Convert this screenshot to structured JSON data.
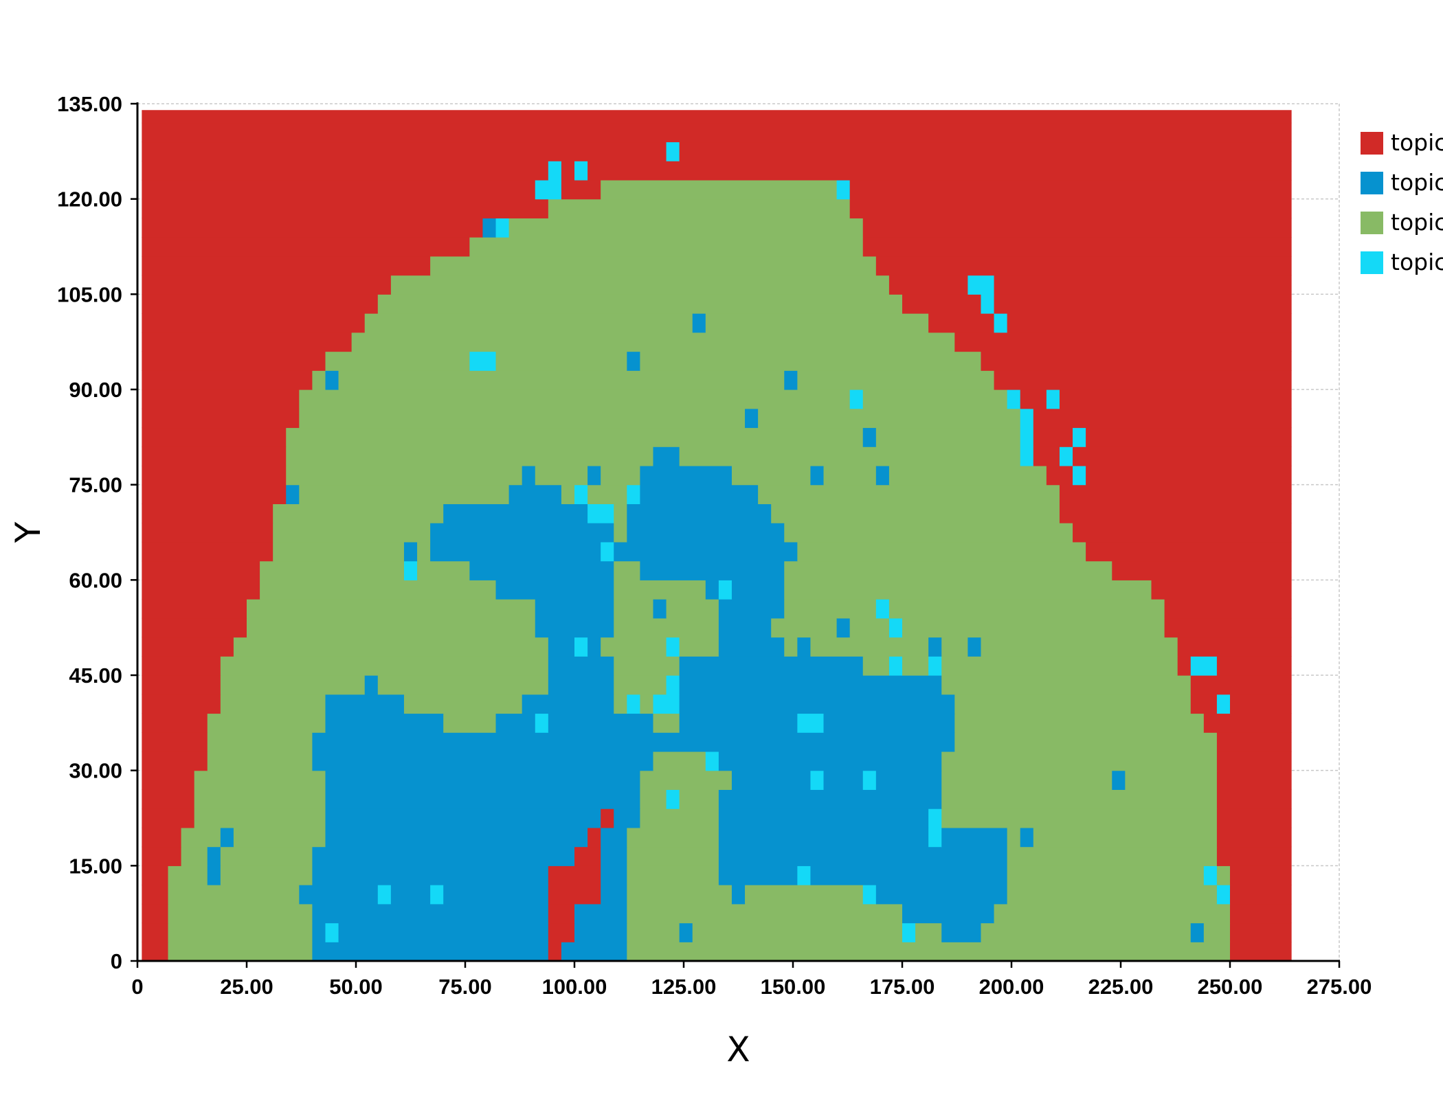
{
  "chart_data": {
    "type": "heatmap",
    "title": "",
    "xlabel": "X",
    "ylabel": "Y",
    "xlim": [
      0,
      275
    ],
    "ylim": [
      0,
      135
    ],
    "x_ticks": [
      "0",
      "25.00",
      "50.00",
      "75.00",
      "100.00",
      "125.00",
      "150.00",
      "175.00",
      "200.00",
      "225.00",
      "250.00",
      "275.00"
    ],
    "y_ticks": [
      "0",
      "15.00",
      "30.00",
      "45.00",
      "60.00",
      "75.00",
      "90.00",
      "105.00",
      "120.00",
      "135.00"
    ],
    "grid": true,
    "legend_position": "right",
    "cell_size": 3,
    "extent": {
      "x": [
        1,
        264
      ],
      "y": [
        0,
        134
      ]
    },
    "categories": [
      {
        "name": "topic",
        "color": "#d12a27"
      },
      {
        "name": "topic",
        "color": "#0692cf"
      },
      {
        "name": "topic",
        "color": "#88ba65"
      },
      {
        "name": "topic",
        "color": "#14d9f7"
      }
    ],
    "background_category": 0,
    "approx_regions": [
      {
        "category": 2,
        "description_points": [
          [
            7,
            0
          ],
          [
            7,
            12
          ],
          [
            10,
            18
          ],
          [
            15,
            30
          ],
          [
            19,
            44
          ],
          [
            25,
            55
          ],
          [
            31,
            66
          ],
          [
            34,
            77
          ],
          [
            37,
            90
          ],
          [
            49,
            98
          ],
          [
            58,
            106
          ],
          [
            73,
            112
          ],
          [
            90,
            117
          ],
          [
            110,
            123
          ],
          [
            130,
            124
          ],
          [
            160,
            122
          ],
          [
            167,
            112
          ],
          [
            175,
            104
          ],
          [
            188,
            97
          ],
          [
            200,
            89
          ],
          [
            208,
            76
          ],
          [
            217,
            65
          ],
          [
            232,
            58
          ],
          [
            240,
            45
          ],
          [
            248,
            30
          ],
          [
            249,
            0
          ]
        ]
      },
      {
        "category": 1,
        "description_points": [
          [
            41,
            0
          ],
          [
            41,
            16
          ],
          [
            44,
            22
          ],
          [
            40,
            33
          ],
          [
            45,
            43
          ],
          [
            55,
            43
          ],
          [
            65,
            38
          ],
          [
            80,
            36
          ],
          [
            88,
            40
          ],
          [
            95,
            45
          ],
          [
            91,
            55
          ],
          [
            76,
            62
          ],
          [
            67,
            64
          ],
          [
            70,
            72
          ],
          [
            82,
            72
          ],
          [
            90,
            78
          ],
          [
            103,
            70
          ],
          [
            110,
            67
          ],
          [
            114,
            61
          ],
          [
            120,
            60
          ],
          [
            133,
            58
          ],
          [
            134,
            50
          ],
          [
            127,
            48
          ],
          [
            120,
            44
          ],
          [
            117,
            38
          ],
          [
            121,
            34
          ],
          [
            130,
            32
          ],
          [
            135,
            30
          ],
          [
            133,
            14
          ],
          [
            138,
            10
          ],
          [
            150,
            13
          ],
          [
            165,
            13
          ],
          [
            175,
            8
          ],
          [
            184,
            4
          ],
          [
            193,
            4
          ],
          [
            198,
            10
          ],
          [
            198,
            20
          ],
          [
            187,
            20
          ],
          [
            183,
            25
          ],
          [
            187,
            40
          ],
          [
            182,
            45
          ],
          [
            170,
            45
          ],
          [
            160,
            48
          ],
          [
            150,
            48
          ],
          [
            146,
            52
          ],
          [
            147,
            58
          ],
          [
            150,
            65
          ],
          [
            143,
            72
          ],
          [
            135,
            78
          ],
          [
            120,
            80
          ],
          [
            113,
            74
          ],
          [
            110,
            60
          ],
          [
            107,
            50
          ],
          [
            110,
            40
          ],
          [
            120,
            40
          ],
          [
            124,
            38
          ],
          [
            118,
            33
          ],
          [
            115,
            25
          ],
          [
            113,
            20
          ],
          [
            112,
            0
          ]
        ]
      },
      {
        "category": 0,
        "description_points": [
          [
            93,
            0
          ],
          [
            93,
            15
          ],
          [
            98,
            14
          ],
          [
            103,
            20
          ],
          [
            108,
            23
          ],
          [
            110,
            27
          ],
          [
            107,
            18
          ],
          [
            105,
            10
          ],
          [
            100,
            8
          ],
          [
            97,
            0
          ]
        ]
      }
    ],
    "highlight_cells": [
      [
        43,
        3
      ],
      [
        56,
        11
      ],
      [
        69,
        11
      ],
      [
        82,
        114
      ],
      [
        93,
        122
      ],
      [
        94,
        120
      ],
      [
        95,
        123
      ],
      [
        102,
        123
      ],
      [
        76,
        95
      ],
      [
        79,
        95
      ],
      [
        122,
        126
      ],
      [
        162,
        121
      ],
      [
        190,
        106
      ],
      [
        193,
        106
      ],
      [
        193,
        103
      ],
      [
        196,
        100
      ],
      [
        201,
        88
      ],
      [
        203,
        86
      ],
      [
        208,
        89
      ],
      [
        214,
        82
      ],
      [
        211,
        79
      ],
      [
        214,
        75
      ],
      [
        202,
        82
      ],
      [
        203,
        80
      ],
      [
        63,
        60
      ],
      [
        102,
        74
      ],
      [
        103,
        69
      ],
      [
        106,
        69
      ],
      [
        112,
        74
      ],
      [
        108,
        63
      ],
      [
        135,
        57
      ],
      [
        165,
        88
      ],
      [
        171,
        54
      ],
      [
        173,
        51
      ],
      [
        173,
        47
      ],
      [
        182,
        45
      ],
      [
        101,
        48
      ],
      [
        122,
        48
      ],
      [
        114,
        40
      ],
      [
        118,
        41
      ],
      [
        121,
        43
      ],
      [
        122,
        40
      ],
      [
        91,
        38
      ],
      [
        130,
        32
      ],
      [
        152,
        37
      ],
      [
        155,
        37
      ],
      [
        154,
        29
      ],
      [
        166,
        29
      ],
      [
        122,
        24
      ],
      [
        152,
        13
      ],
      [
        168,
        11
      ],
      [
        176,
        5
      ],
      [
        181,
        21
      ],
      [
        183,
        20
      ],
      [
        246,
        46
      ],
      [
        247,
        40
      ],
      [
        246,
        14
      ],
      [
        247,
        11
      ],
      [
        243,
        46
      ]
    ],
    "point_cells_dark": [
      [
        43,
        90
      ],
      [
        35,
        72
      ],
      [
        21,
        20
      ],
      [
        16,
        17
      ],
      [
        16,
        14
      ],
      [
        38,
        11
      ],
      [
        46,
        14
      ],
      [
        47,
        17
      ],
      [
        54,
        43
      ],
      [
        63,
        63
      ],
      [
        105,
        76
      ],
      [
        128,
        100
      ],
      [
        114,
        95
      ],
      [
        141,
        85
      ],
      [
        149,
        92
      ],
      [
        154,
        76
      ],
      [
        167,
        82
      ],
      [
        170,
        76
      ],
      [
        160,
        53
      ],
      [
        151,
        49
      ],
      [
        100,
        56
      ],
      [
        119,
        56
      ],
      [
        183,
        48
      ],
      [
        192,
        48
      ],
      [
        185,
        17
      ],
      [
        225,
        29
      ],
      [
        204,
        20
      ],
      [
        243,
        5
      ],
      [
        126,
        5
      ],
      [
        79,
        114
      ]
    ]
  }
}
